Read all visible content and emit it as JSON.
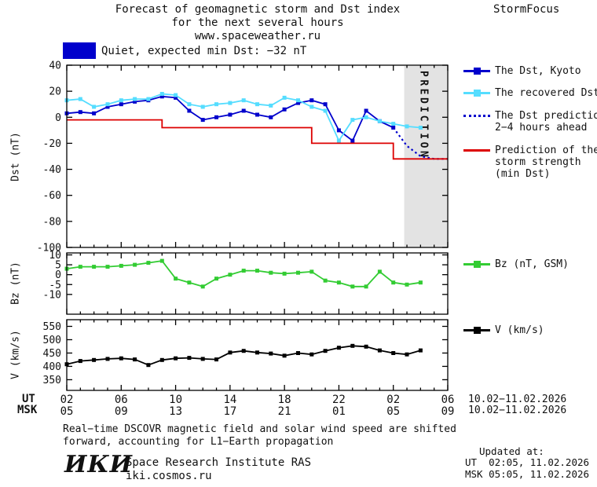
{
  "header": {
    "title_line1": "Forecast of geomagnetic storm and Dst index",
    "title_line2": "for the next several hours",
    "title_line3": "www.spaceweather.ru",
    "brand": "StormFocus"
  },
  "status_banner": {
    "color": "#0000cc",
    "text": "Quiet, expected min Dst: −32 nT"
  },
  "legend": {
    "dst_kyoto": "The Dst, Kyoto",
    "recovered": "The recovered Dst",
    "prediction_line1": "The Dst prediction",
    "prediction_line2": "2−4 hours ahead",
    "storm_line1": "Prediction of the",
    "storm_line2": "storm strength",
    "storm_line3": "(min Dst)",
    "bz": "Bz (nT, GSM)",
    "v": "V (km/s)"
  },
  "axes": {
    "ut_label": "UT",
    "msk_label": "MSK",
    "ut_ticks": [
      "02",
      "06",
      "10",
      "14",
      "18",
      "22",
      "02",
      "06"
    ],
    "msk_ticks": [
      "05",
      "09",
      "13",
      "17",
      "21",
      "01",
      "05",
      "09"
    ],
    "ut_date": "10.02−11.02.2026",
    "msk_date": "10.02−11.02.2026"
  },
  "footer": {
    "note_line1": "Real−time DSCOVR magnetic field and solar wind speed are shifted",
    "note_line2": "forward, accounting for L1−Earth propagation",
    "updated_label": "Updated at:",
    "updated_ut": "UT  02:05, 11.02.2026",
    "updated_msk": "MSK 05:05, 11.02.2026",
    "logo": "ИКИ",
    "institute": "Space Research Institute RAS",
    "site": "iki.cosmos.ru"
  },
  "chart_data": [
    {
      "name": "dst",
      "type": "line",
      "ylabel": "Dst (nT)",
      "xlim": [
        2,
        30
      ],
      "ylim": [
        -100,
        40
      ],
      "yticks": [
        40,
        20,
        0,
        -20,
        -40,
        -60,
        -80,
        -100
      ],
      "xticks": [
        2,
        6,
        10,
        14,
        18,
        22,
        26,
        30
      ],
      "band": {
        "x": [
          26.8,
          30
        ],
        "label": "PREDICTION"
      },
      "series": [
        {
          "id": "dst-kyoto",
          "name": "The Dst, Kyoto",
          "color": "#0000cc",
          "marker": "square",
          "x": [
            2,
            3,
            4,
            5,
            6,
            7,
            8,
            9,
            10,
            11,
            12,
            13,
            14,
            15,
            16,
            17,
            18,
            19,
            20,
            21,
            22,
            23,
            24,
            25,
            26
          ],
          "y": [
            3,
            4,
            3,
            8,
            10,
            12,
            13,
            16,
            15,
            5,
            -2,
            0,
            2,
            5,
            2,
            0,
            6,
            11,
            13,
            10,
            -10,
            -18,
            5,
            -3,
            -8
          ]
        },
        {
          "id": "dst-recovered",
          "name": "The recovered Dst",
          "color": "#55ddff",
          "marker": "square",
          "x": [
            2,
            3,
            4,
            5,
            6,
            7,
            8,
            9,
            10,
            11,
            12,
            13,
            14,
            15,
            16,
            17,
            18,
            19,
            20,
            21,
            22,
            23,
            24,
            25,
            26,
            27,
            28
          ],
          "y": [
            13,
            14,
            8,
            10,
            13,
            14,
            14,
            18,
            17,
            10,
            8,
            10,
            11,
            13,
            10,
            9,
            15,
            13,
            8,
            5,
            -18,
            -2,
            0,
            -3,
            -5,
            -7,
            -8
          ]
        },
        {
          "id": "dst-prediction",
          "name": "The Dst prediction 2−4 hours ahead",
          "color": "#0000cc",
          "style": "dotted",
          "x": [
            26,
            27,
            28,
            29,
            30
          ],
          "y": [
            -8,
            -22,
            -30,
            -32,
            -32
          ]
        },
        {
          "id": "storm-strength",
          "name": "Prediction of the storm strength (min Dst)",
          "color": "#dd0000",
          "x": [
            2,
            9,
            9,
            20,
            20,
            26,
            26,
            30
          ],
          "y": [
            -2,
            -2,
            -8,
            -8,
            -20,
            -20,
            -32,
            -32
          ]
        }
      ]
    },
    {
      "name": "bz",
      "type": "line",
      "ylabel": "Bz (nT)",
      "xlim": [
        2,
        30
      ],
      "ylim": [
        -20,
        11
      ],
      "yticks": [
        10,
        5,
        0,
        -5,
        -10
      ],
      "xticks": [
        2,
        6,
        10,
        14,
        18,
        22,
        26,
        30
      ],
      "series": [
        {
          "id": "bz",
          "name": "Bz (nT, GSM)",
          "color": "#33cc33",
          "marker": "square",
          "x": [
            2,
            3,
            4,
            5,
            6,
            7,
            8,
            9,
            10,
            11,
            12,
            13,
            14,
            15,
            16,
            17,
            18,
            19,
            20,
            21,
            22,
            23,
            24,
            25,
            26,
            27,
            28
          ],
          "y": [
            3,
            4,
            4,
            4,
            4.5,
            5,
            6,
            7,
            -2,
            -4,
            -6,
            -2,
            0,
            2,
            2,
            1,
            0.5,
            1,
            1.5,
            -3,
            -4,
            -6,
            -6,
            1.5,
            -4,
            -5,
            -4
          ]
        }
      ]
    },
    {
      "name": "v",
      "type": "line",
      "ylabel": "V (km/s)",
      "xlim": [
        2,
        30
      ],
      "ylim": [
        310,
        575
      ],
      "yticks": [
        550,
        500,
        450,
        400,
        350
      ],
      "xticks": [
        2,
        6,
        10,
        14,
        18,
        22,
        26,
        30
      ],
      "series": [
        {
          "id": "v",
          "name": "V (km/s)",
          "color": "#000000",
          "marker": "square",
          "x": [
            2,
            3,
            4,
            5,
            6,
            7,
            8,
            9,
            10,
            11,
            12,
            13,
            14,
            15,
            16,
            17,
            18,
            19,
            20,
            21,
            22,
            23,
            24,
            25,
            26,
            27,
            28
          ],
          "y": [
            408,
            420,
            424,
            428,
            430,
            426,
            405,
            424,
            430,
            432,
            428,
            426,
            452,
            458,
            452,
            448,
            440,
            450,
            445,
            458,
            470,
            477,
            474,
            460,
            450,
            445,
            460
          ]
        }
      ]
    }
  ]
}
